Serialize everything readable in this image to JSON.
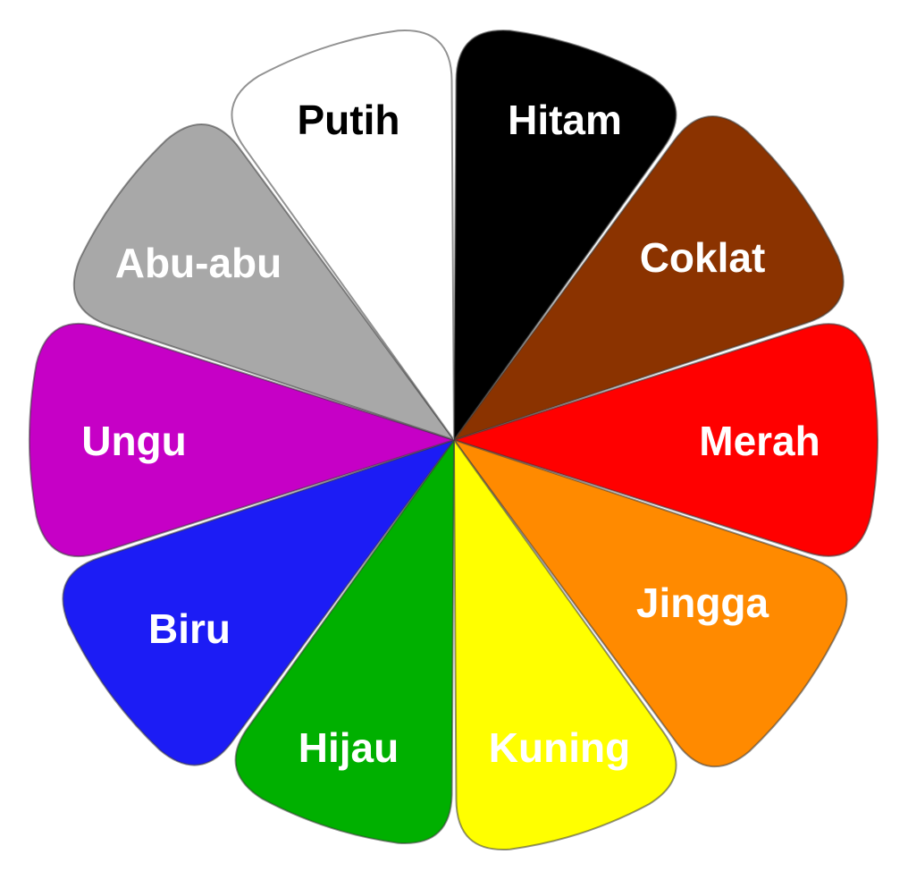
{
  "segments": [
    {
      "label": "Hitam",
      "fill": "#000000",
      "label_color": "#ffffff"
    },
    {
      "label": "Coklat",
      "fill": "#8b3300",
      "label_color": "#ffffff"
    },
    {
      "label": "Merah",
      "fill": "#ff0000",
      "label_color": "#ffffff"
    },
    {
      "label": "Jingga",
      "fill": "#ff8a00",
      "label_color": "#ffffff"
    },
    {
      "label": "Kuning",
      "fill": "#ffff00",
      "label_color": "#ffffff"
    },
    {
      "label": "Hijau",
      "fill": "#00b000",
      "label_color": "#ffffff"
    },
    {
      "label": "Biru",
      "fill": "#1c1cf5",
      "label_color": "#ffffff"
    },
    {
      "label": "Ungu",
      "fill": "#c600c6",
      "label_color": "#ffffff"
    },
    {
      "label": "Abu-abu",
      "fill": "#a8a8a8",
      "label_color": "#ffffff"
    },
    {
      "label": "Putih",
      "fill": "#ffffff",
      "label_color": "#000000"
    }
  ]
}
